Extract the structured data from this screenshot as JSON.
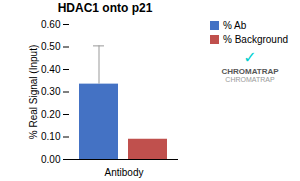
{
  "chart_data": {
    "type": "bar",
    "title": "HDAC1 onto p21",
    "ylabel": "% Real Signal (Input)",
    "categories": [
      "Antibody"
    ],
    "series": [
      {
        "name": "% Ab",
        "color": "#4472C4",
        "values": [
          0.335
        ],
        "error_low": [
          0.0
        ],
        "error_high": [
          0.17
        ]
      },
      {
        "name": "% Background",
        "color": "#C0504D",
        "values": [
          0.09
        ]
      }
    ],
    "ylim": [
      0.0,
      0.6
    ],
    "yticks": [
      {
        "value": 0.0,
        "label": "0.00"
      },
      {
        "value": 0.1,
        "label": "0.10"
      },
      {
        "value": 0.2,
        "label": "0.20"
      },
      {
        "value": 0.3,
        "label": "0.30"
      },
      {
        "value": 0.4,
        "label": "0.40"
      },
      {
        "value": 0.5,
        "label": "0.50"
      },
      {
        "value": 0.6,
        "label": "0.60"
      }
    ],
    "grid": false,
    "legend": "upper right",
    "annotations": [
      {
        "text": "✓",
        "color": "#00CFCF"
      },
      {
        "text": "CHROMATRAP",
        "color": "#555555"
      },
      {
        "text": "CHROMATRAP",
        "color": "#999999"
      }
    ]
  }
}
